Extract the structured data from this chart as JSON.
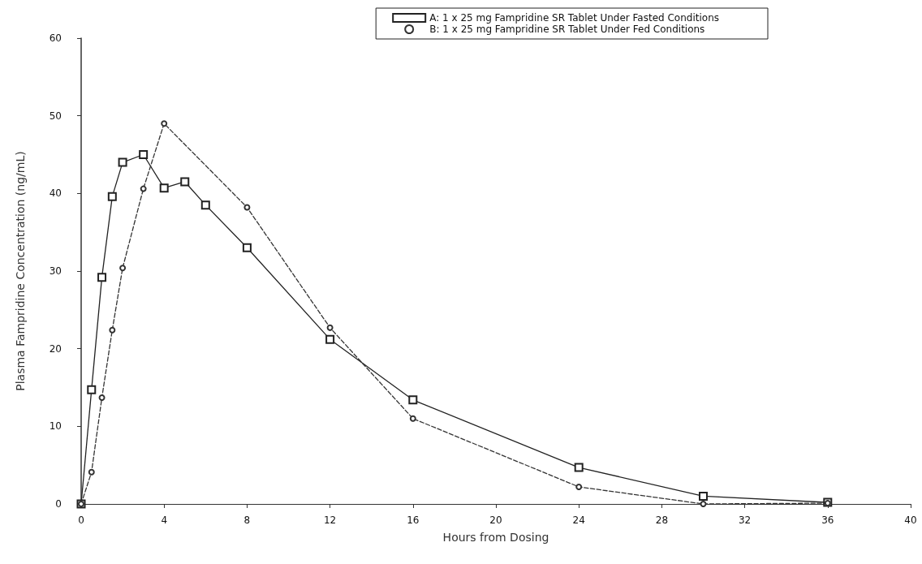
{
  "chart_data": {
    "type": "line",
    "xlabel": "Hours from Dosing",
    "ylabel": "Plasma Fampridine Concentration (ng/mL)",
    "xlim": [
      0,
      40
    ],
    "xticks": [
      0,
      4,
      8,
      12,
      16,
      20,
      24,
      28,
      32,
      36,
      40
    ],
    "ylim": [
      0,
      60
    ],
    "yticks": [
      0,
      10,
      20,
      30,
      40,
      50,
      60
    ],
    "grid": false,
    "legend": "top right",
    "series": [
      {
        "name": "A: 1 x 25 mg Fampridine SR Tablet Under Fasted Conditions",
        "color": "#222222",
        "marker": "square",
        "line_style": "solid",
        "x": [
          0,
          0.5,
          1,
          1.5,
          2,
          3,
          4,
          5,
          6,
          8,
          12,
          16,
          24,
          30,
          36
        ],
        "values": [
          0,
          14.7,
          29.2,
          39.6,
          44,
          45,
          40.7,
          41.5,
          38.5,
          33,
          21.2,
          13.4,
          4.7,
          1,
          0.2
        ]
      },
      {
        "name": "B: 1 x 25 mg Fampridine SR Tablet Under Fed Conditions",
        "color": "#333333",
        "marker": "circle",
        "line_style": "dashed",
        "x": [
          0,
          0.5,
          1,
          1.5,
          2,
          3,
          4,
          8,
          12,
          16,
          24,
          30,
          36
        ],
        "values": [
          0,
          4.1,
          13.7,
          22.4,
          30.4,
          40.6,
          49,
          38.2,
          22.7,
          11,
          2.2,
          0,
          0.1
        ]
      }
    ]
  }
}
